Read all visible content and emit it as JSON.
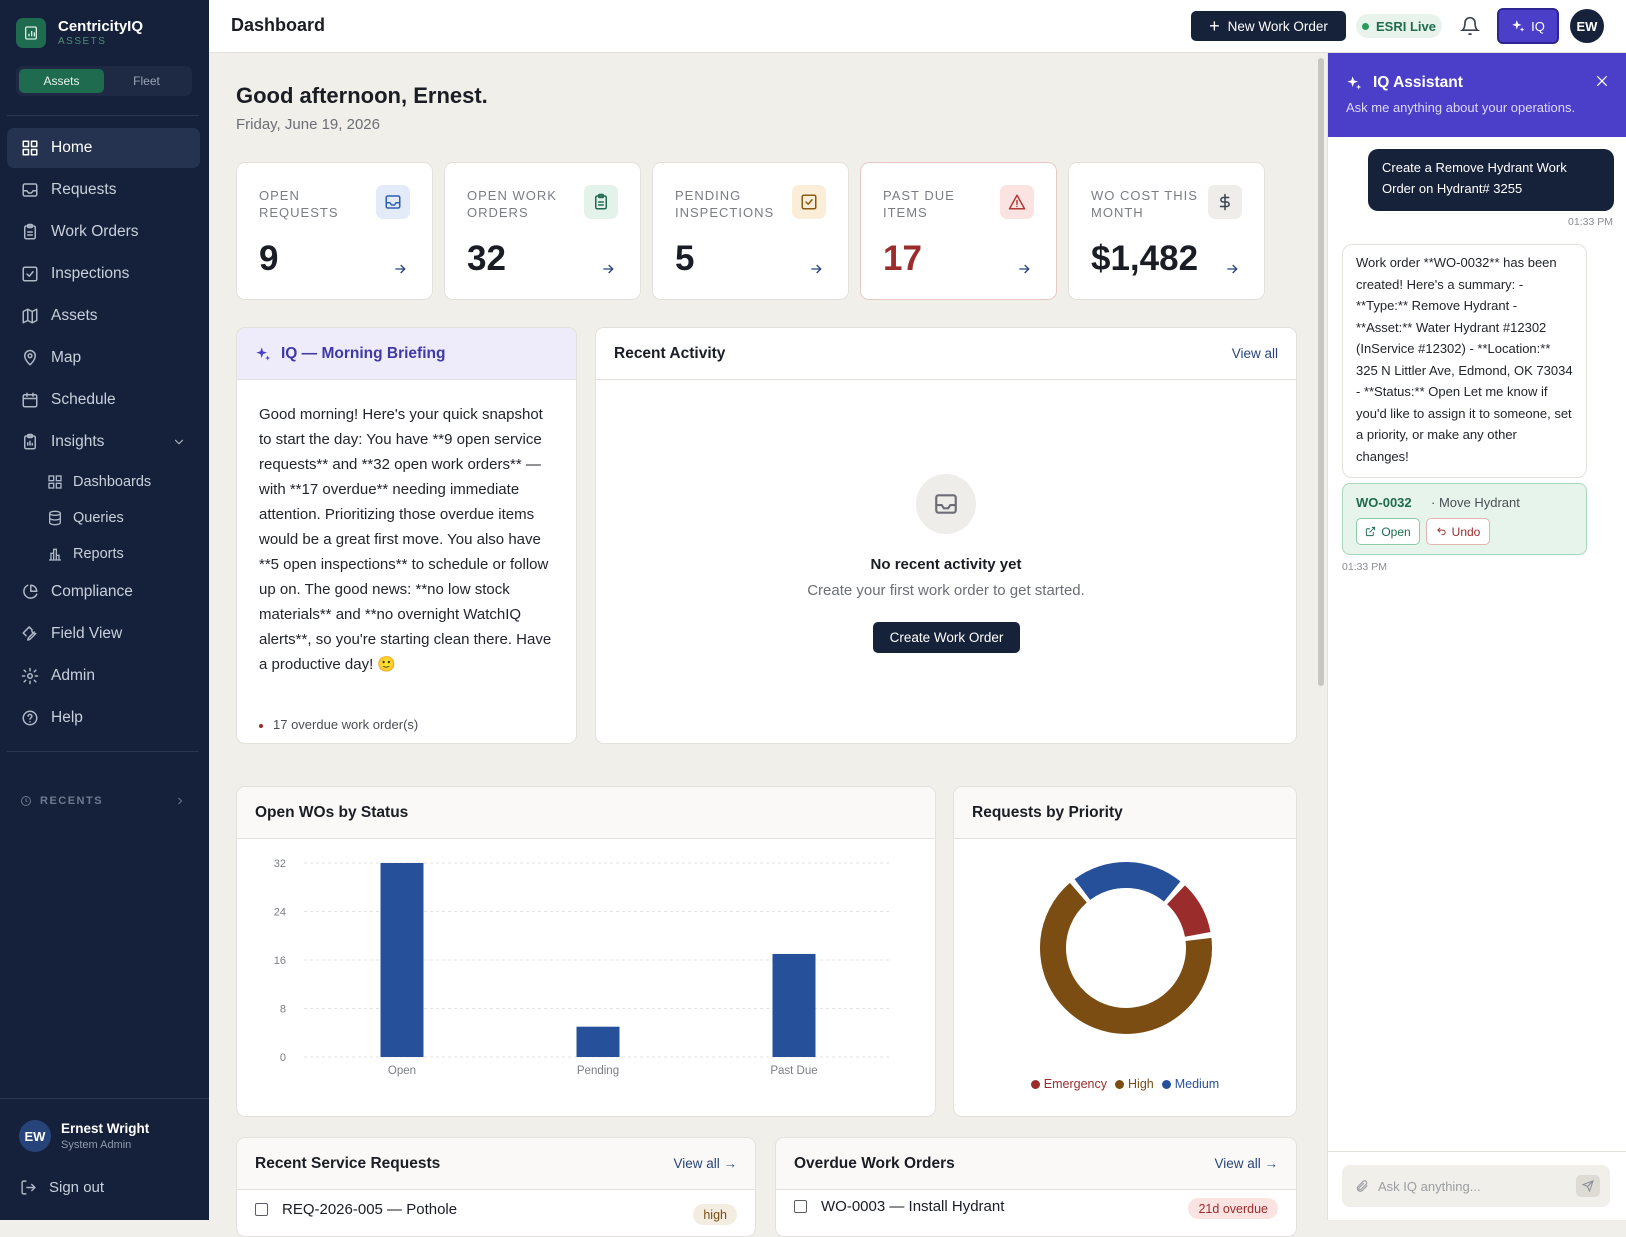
{
  "app": {
    "name": "CentricityIQ",
    "module": "ASSETS"
  },
  "modes": {
    "assets": "Assets",
    "fleet": "Fleet"
  },
  "nav": {
    "home": "Home",
    "requests": "Requests",
    "work_orders": "Work Orders",
    "inspections": "Inspections",
    "assets": "Assets",
    "map": "Map",
    "schedule": "Schedule",
    "insights": "Insights",
    "dashboards": "Dashboards",
    "queries": "Queries",
    "reports": "Reports",
    "compliance": "Compliance",
    "field_view": "Field View",
    "admin": "Admin",
    "help": "Help"
  },
  "recents": "RECENTS",
  "user": {
    "initials": "EW",
    "name": "Ernest Wright",
    "role": "System Admin"
  },
  "signout": "Sign out",
  "topbar": {
    "title": "Dashboard",
    "new_work_order": "New Work Order",
    "esri": "ESRI Live",
    "iq": "IQ",
    "avatar": "EW"
  },
  "greeting": "Good afternoon, Ernest.",
  "date": "Friday, June 19, 2026",
  "kpis": [
    {
      "label": "OPEN REQUESTS",
      "value": "9",
      "color": "#2f5fb3",
      "bg": "#e4ebf8"
    },
    {
      "label": "OPEN WORK ORDERS",
      "value": "32",
      "color": "#1f6b4f",
      "bg": "#e3f2ea"
    },
    {
      "label": "PENDING INSPECTIONS",
      "value": "5",
      "color": "#8a5a12",
      "bg": "#fbeed9"
    },
    {
      "label": "PAST DUE ITEMS",
      "value": "17",
      "color": "#b03a36",
      "bg": "#fbe3e1"
    },
    {
      "label": "WO COST THIS MONTH",
      "value": "$1,482",
      "color": "#3b4250",
      "bg": "#eeedea"
    }
  ],
  "briefing": {
    "title": "IQ — Morning Briefing",
    "text": "Good morning! Here's your quick snapshot to start the day: You have **9 open service requests** and **32 open work orders** — with **17 overdue** needing immediate attention. Prioritizing those overdue items would be a great first move. You also have **5 open inspections** to schedule or follow up on. The good news: **no low stock materials** and **no overnight WatchIQ alerts**, so you're starting clean there. Have a productive day! 🙂",
    "bullet": "17 overdue work order(s)"
  },
  "activity": {
    "title": "Recent Activity",
    "view_all": "View all",
    "empty_title": "No recent activity yet",
    "empty_sub": "Create your first work order to get started.",
    "create": "Create Work Order"
  },
  "wo_chart": {
    "title": "Open WOs by Status"
  },
  "priority_chart": {
    "title": "Requests by Priority"
  },
  "chart_data": [
    {
      "type": "bar",
      "categories": [
        "Open",
        "Pending",
        "Past Due"
      ],
      "values": [
        32,
        5,
        17
      ],
      "yticks": [
        0,
        8,
        16,
        24,
        32
      ],
      "ylim": [
        0,
        32
      ],
      "color": "#27509b",
      "grid": true
    },
    {
      "type": "pie",
      "donut": true,
      "labels": [
        "Emergency",
        "High",
        "Medium"
      ],
      "values": [
        1,
        6,
        2
      ],
      "colors": [
        "#9b2c2c",
        "#7b4d12",
        "#27509b"
      ],
      "legend": "bottom"
    }
  ],
  "service_requests": {
    "title": "Recent Service Requests",
    "view_all": "View all →",
    "rows": [
      {
        "text": "REQ-2026-005 — Pothole",
        "badge": "high"
      }
    ]
  },
  "overdue": {
    "title": "Overdue Work Orders",
    "view_all": "View all →",
    "rows": [
      {
        "text": "WO-0003 — Install Hydrant",
        "badge": "21d overdue"
      }
    ]
  },
  "iq": {
    "title": "IQ Assistant",
    "subtitle": "Ask me anything about your operations.",
    "user_msg": "Create a Remove Hydrant Work Order on Hydrant# 3255",
    "user_time": "01:33 PM",
    "bot_msg": "Work order **WO-0032** has been created! Here's a summary: - **Type:** Remove Hydrant - **Asset:** Water Hydrant #12302 (InService #12302) - **Location:** 325 N Littler Ave, Edmond, OK 73034 - **Status:** Open Let me know if you'd like to assign it to someone, set a priority, or make any other changes!",
    "wo_id": "WO-0032",
    "wo_name": "· Move Hydrant",
    "open": "Open",
    "undo": "Undo",
    "bot_time": "01:33 PM",
    "placeholder": "Ask IQ anything..."
  }
}
